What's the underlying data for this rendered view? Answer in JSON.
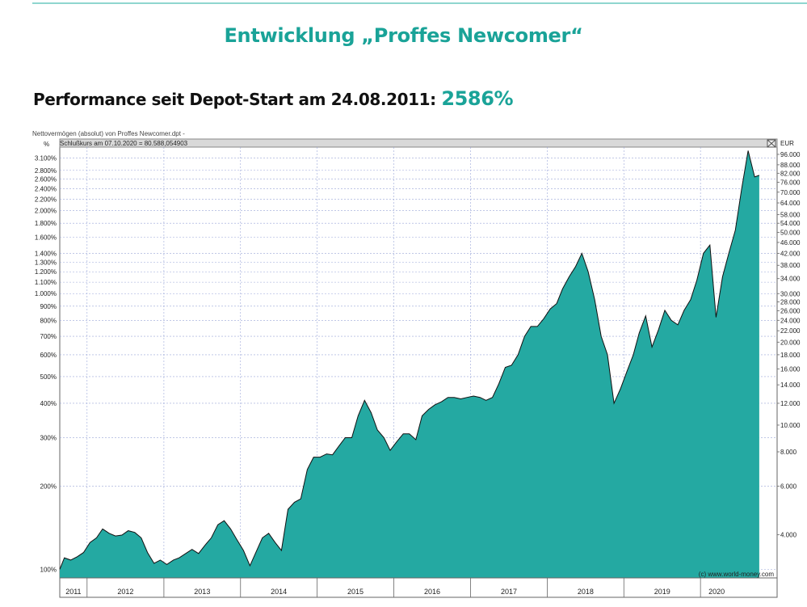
{
  "slide": {
    "title": "Entwicklung „Proffes Newcomer“",
    "performance_label": "Performance seit Depot-Start am 24.08.2011:",
    "performance_value": "2586%"
  },
  "colors": {
    "accent": "#1aa398",
    "area_fill": "#24a9a2",
    "grid": "#9aa6d8"
  },
  "chart_data": {
    "type": "area",
    "title": "Nettovermögen (absolut) von Proffes Newcomer.dpt -",
    "subtitle": "Schlußkurs am 07.10.2020 = 80.588,054903",
    "left_axis_unit": "%",
    "right_axis_unit": "EUR",
    "yscale": "log",
    "grid": true,
    "copyright": "(c) www.world-money.com",
    "left_ticks": [
      {
        "v": 100,
        "label": "100%"
      },
      {
        "v": 200,
        "label": "200%"
      },
      {
        "v": 300,
        "label": "300%"
      },
      {
        "v": 400,
        "label": "400%"
      },
      {
        "v": 500,
        "label": "500%"
      },
      {
        "v": 600,
        "label": "600%"
      },
      {
        "v": 700,
        "label": "700%"
      },
      {
        "v": 800,
        "label": "800%"
      },
      {
        "v": 900,
        "label": "900%"
      },
      {
        "v": 1000,
        "label": "1.000%"
      },
      {
        "v": 1100,
        "label": "1.100%"
      },
      {
        "v": 1200,
        "label": "1.200%"
      },
      {
        "v": 1300,
        "label": "1.300%"
      },
      {
        "v": 1400,
        "label": "1.400%"
      },
      {
        "v": 1600,
        "label": "1.600%"
      },
      {
        "v": 1800,
        "label": "1.800%"
      },
      {
        "v": 2000,
        "label": "2.000%"
      },
      {
        "v": 2200,
        "label": "2.200%"
      },
      {
        "v": 2400,
        "label": "2.400%"
      },
      {
        "v": 2600,
        "label": "2.600%"
      },
      {
        "v": 2800,
        "label": "2.800%"
      },
      {
        "v": 3100,
        "label": "3.100%"
      }
    ],
    "right_ticks": [
      {
        "v": 4000,
        "label": "4.000"
      },
      {
        "v": 6000,
        "label": "6.000"
      },
      {
        "v": 8000,
        "label": "8.000"
      },
      {
        "v": 10000,
        "label": "10.000"
      },
      {
        "v": 12000,
        "label": "12.000"
      },
      {
        "v": 14000,
        "label": "14.000"
      },
      {
        "v": 16000,
        "label": "16.000"
      },
      {
        "v": 18000,
        "label": "18.000"
      },
      {
        "v": 20000,
        "label": "20.000"
      },
      {
        "v": 22000,
        "label": "22.000"
      },
      {
        "v": 24000,
        "label": "24.000"
      },
      {
        "v": 26000,
        "label": "26.000"
      },
      {
        "v": 28000,
        "label": "28.000"
      },
      {
        "v": 30000,
        "label": "30.000"
      },
      {
        "v": 34000,
        "label": "34.000"
      },
      {
        "v": 38000,
        "label": "38.000"
      },
      {
        "v": 42000,
        "label": "42.000"
      },
      {
        "v": 46000,
        "label": "46.000"
      },
      {
        "v": 50000,
        "label": "50.000"
      },
      {
        "v": 54000,
        "label": "54.000"
      },
      {
        "v": 58000,
        "label": "58.000"
      },
      {
        "v": 64000,
        "label": "64.000"
      },
      {
        "v": 70000,
        "label": "70.000"
      },
      {
        "v": 76000,
        "label": "76.000"
      },
      {
        "v": 82000,
        "label": "82.000"
      },
      {
        "v": 88000,
        "label": "88.000"
      },
      {
        "v": 96000,
        "label": "96.000"
      }
    ],
    "x_ticks": [
      "2011",
      "2012",
      "2013",
      "2014",
      "2015",
      "2016",
      "2017",
      "2018",
      "2019",
      "2020"
    ],
    "x_range": [
      "2011-08-24",
      "2020-12-31"
    ],
    "y_range_percent": [
      93,
      3400
    ],
    "series": [
      {
        "values_percent": [
          [
            "2011-08-24",
            100
          ],
          [
            "2011-09-15",
            110
          ],
          [
            "2011-10-15",
            108
          ],
          [
            "2011-11-15",
            111
          ],
          [
            "2011-12-15",
            115
          ],
          [
            "2012-01-15",
            125
          ],
          [
            "2012-02-15",
            130
          ],
          [
            "2012-03-15",
            140
          ],
          [
            "2012-04-15",
            135
          ],
          [
            "2012-05-15",
            132
          ],
          [
            "2012-06-15",
            133
          ],
          [
            "2012-07-15",
            138
          ],
          [
            "2012-08-15",
            136
          ],
          [
            "2012-09-15",
            130
          ],
          [
            "2012-10-15",
            115
          ],
          [
            "2012-11-15",
            105
          ],
          [
            "2012-12-15",
            108
          ],
          [
            "2013-01-15",
            104
          ],
          [
            "2013-02-15",
            108
          ],
          [
            "2013-03-15",
            110
          ],
          [
            "2013-04-15",
            114
          ],
          [
            "2013-05-15",
            118
          ],
          [
            "2013-06-15",
            114
          ],
          [
            "2013-07-15",
            122
          ],
          [
            "2013-08-15",
            130
          ],
          [
            "2013-09-15",
            145
          ],
          [
            "2013-10-15",
            150
          ],
          [
            "2013-11-15",
            140
          ],
          [
            "2013-12-15",
            128
          ],
          [
            "2014-01-15",
            117
          ],
          [
            "2014-02-15",
            103
          ],
          [
            "2014-03-15",
            115
          ],
          [
            "2014-04-15",
            130
          ],
          [
            "2014-05-15",
            135
          ],
          [
            "2014-06-15",
            125
          ],
          [
            "2014-07-15",
            117
          ],
          [
            "2014-08-15",
            165
          ],
          [
            "2014-09-15",
            175
          ],
          [
            "2014-10-15",
            180
          ],
          [
            "2014-11-15",
            230
          ],
          [
            "2014-12-15",
            255
          ],
          [
            "2015-01-15",
            255
          ],
          [
            "2015-02-15",
            262
          ],
          [
            "2015-03-15",
            260
          ],
          [
            "2015-04-15",
            280
          ],
          [
            "2015-05-15",
            300
          ],
          [
            "2015-06-15",
            300
          ],
          [
            "2015-07-15",
            360
          ],
          [
            "2015-08-15",
            410
          ],
          [
            "2015-09-15",
            370
          ],
          [
            "2015-10-15",
            320
          ],
          [
            "2015-11-15",
            300
          ],
          [
            "2015-12-15",
            270
          ],
          [
            "2016-01-15",
            290
          ],
          [
            "2016-02-15",
            310
          ],
          [
            "2016-03-15",
            310
          ],
          [
            "2016-04-15",
            295
          ],
          [
            "2016-05-15",
            360
          ],
          [
            "2016-06-15",
            380
          ],
          [
            "2016-07-15",
            395
          ],
          [
            "2016-08-15",
            405
          ],
          [
            "2016-09-15",
            420
          ],
          [
            "2016-10-15",
            420
          ],
          [
            "2016-11-15",
            415
          ],
          [
            "2016-12-15",
            420
          ],
          [
            "2017-01-15",
            425
          ],
          [
            "2017-02-15",
            420
          ],
          [
            "2017-03-15",
            410
          ],
          [
            "2017-04-15",
            420
          ],
          [
            "2017-05-15",
            470
          ],
          [
            "2017-06-15",
            540
          ],
          [
            "2017-07-15",
            550
          ],
          [
            "2017-08-15",
            600
          ],
          [
            "2017-09-15",
            700
          ],
          [
            "2017-10-15",
            760
          ],
          [
            "2017-11-15",
            760
          ],
          [
            "2017-12-15",
            810
          ],
          [
            "2018-01-15",
            880
          ],
          [
            "2018-02-15",
            920
          ],
          [
            "2018-03-15",
            1040
          ],
          [
            "2018-04-15",
            1150
          ],
          [
            "2018-05-15",
            1250
          ],
          [
            "2018-06-15",
            1400
          ],
          [
            "2018-07-15",
            1200
          ],
          [
            "2018-08-15",
            950
          ],
          [
            "2018-09-15",
            700
          ],
          [
            "2018-10-15",
            600
          ],
          [
            "2018-11-15",
            400
          ],
          [
            "2018-12-15",
            450
          ],
          [
            "2019-01-15",
            520
          ],
          [
            "2019-02-15",
            600
          ],
          [
            "2019-03-15",
            720
          ],
          [
            "2019-04-15",
            830
          ],
          [
            "2019-05-15",
            640
          ],
          [
            "2019-06-15",
            740
          ],
          [
            "2019-07-15",
            870
          ],
          [
            "2019-08-15",
            800
          ],
          [
            "2019-09-15",
            770
          ],
          [
            "2019-10-15",
            870
          ],
          [
            "2019-11-15",
            950
          ],
          [
            "2019-12-15",
            1120
          ],
          [
            "2020-01-15",
            1400
          ],
          [
            "2020-02-15",
            1500
          ],
          [
            "2020-03-15",
            820
          ],
          [
            "2020-04-15",
            1150
          ],
          [
            "2020-05-15",
            1400
          ],
          [
            "2020-06-15",
            1700
          ],
          [
            "2020-07-15",
            2400
          ],
          [
            "2020-08-15",
            3300
          ],
          [
            "2020-09-15",
            2650
          ],
          [
            "2020-10-07",
            2686
          ]
        ]
      }
    ]
  }
}
